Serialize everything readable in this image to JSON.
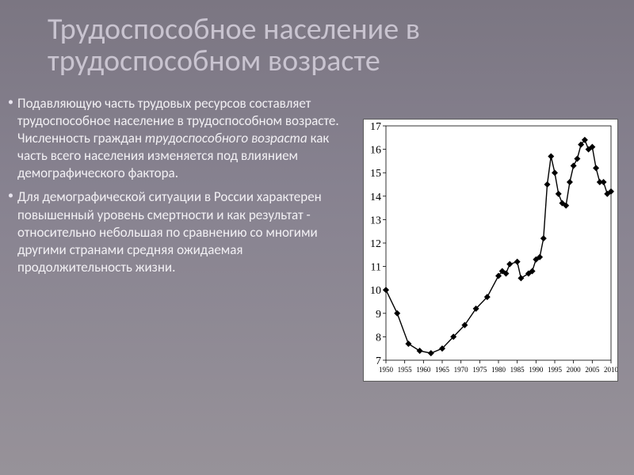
{
  "title": "Трудоспособное население в трудоспособном возрасте",
  "bullets": [
    "Подавляющую часть трудовых ресурсов составляет трудоспособное население в трудоспособном возрасте. Численность граждан <em>трудоспособного возраста</em> как часть всего населения изменяется под влиянием демографического фактора.",
    "Для демографической ситуации в России характерен повышенный уровень смертности и как результат - относительно небольшая по сравнению со многими другими странами средняя ожидаемая продолжительность жизни."
  ],
  "chart": {
    "type": "line",
    "background_color": "#ffffff",
    "border_color": "#5c5c5c",
    "line_color": "#000000",
    "marker_color": "#000000",
    "marker_shape": "diamond",
    "marker_size": 4,
    "line_width": 1.4,
    "x_categories": [
      "1950",
      "1955",
      "1960",
      "1965",
      "1970",
      "1975",
      "1980",
      "1985",
      "1990",
      "1995",
      "2000",
      "2005",
      "2010"
    ],
    "y_ticks": [
      7,
      8,
      9,
      10,
      11,
      12,
      13,
      14,
      15,
      16,
      17
    ],
    "ylim": [
      7,
      17
    ],
    "y_tick_fontsize": 14,
    "x_tick_fontsize": 9,
    "y_tick_color": "#000000",
    "x_tick_color": "#000000",
    "data_points": [
      {
        "x": 1950,
        "y": 10.0
      },
      {
        "x": 1953,
        "y": 9.0
      },
      {
        "x": 1956,
        "y": 7.7
      },
      {
        "x": 1959,
        "y": 7.4
      },
      {
        "x": 1962,
        "y": 7.3
      },
      {
        "x": 1965,
        "y": 7.5
      },
      {
        "x": 1968,
        "y": 8.0
      },
      {
        "x": 1971,
        "y": 8.5
      },
      {
        "x": 1974,
        "y": 9.2
      },
      {
        "x": 1977,
        "y": 9.7
      },
      {
        "x": 1980,
        "y": 10.6
      },
      {
        "x": 1981,
        "y": 10.8
      },
      {
        "x": 1982,
        "y": 10.7
      },
      {
        "x": 1983,
        "y": 11.1
      },
      {
        "x": 1985,
        "y": 11.2
      },
      {
        "x": 1986,
        "y": 10.5
      },
      {
        "x": 1988,
        "y": 10.7
      },
      {
        "x": 1989,
        "y": 10.8
      },
      {
        "x": 1990,
        "y": 11.3
      },
      {
        "x": 1991,
        "y": 11.4
      },
      {
        "x": 1992,
        "y": 12.2
      },
      {
        "x": 1993,
        "y": 14.5
      },
      {
        "x": 1994,
        "y": 15.7
      },
      {
        "x": 1995,
        "y": 15.0
      },
      {
        "x": 1996,
        "y": 14.1
      },
      {
        "x": 1997,
        "y": 13.7
      },
      {
        "x": 1998,
        "y": 13.6
      },
      {
        "x": 1999,
        "y": 14.6
      },
      {
        "x": 2000,
        "y": 15.3
      },
      {
        "x": 2001,
        "y": 15.6
      },
      {
        "x": 2002,
        "y": 16.2
      },
      {
        "x": 2003,
        "y": 16.4
      },
      {
        "x": 2004,
        "y": 16.0
      },
      {
        "x": 2005,
        "y": 16.1
      },
      {
        "x": 2006,
        "y": 15.2
      },
      {
        "x": 2007,
        "y": 14.6
      },
      {
        "x": 2008,
        "y": 14.6
      },
      {
        "x": 2009,
        "y": 14.1
      },
      {
        "x": 2010,
        "y": 14.2
      }
    ]
  }
}
